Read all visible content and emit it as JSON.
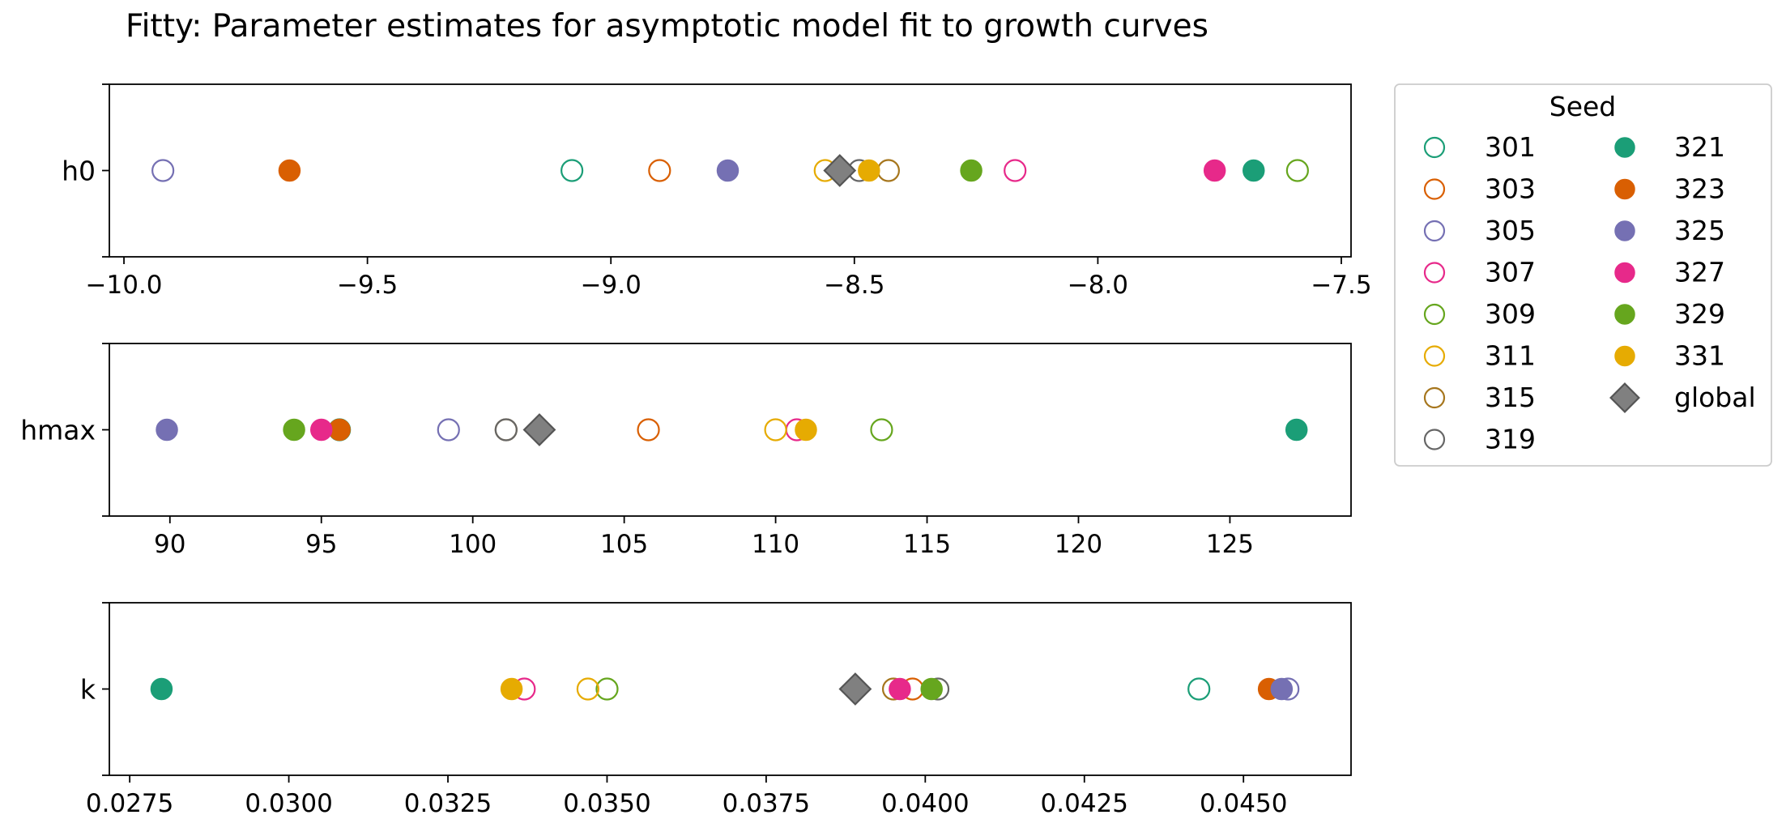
{
  "chart_data": {
    "type": "scatter",
    "title": "Fitty: Parameter estimates for asymptotic model fit to growth curves",
    "legend": {
      "title": "Seed",
      "placement": "right-outside-top"
    },
    "colors": {
      "301": "#1b9e77",
      "303": "#d95f02",
      "305": "#7570b3",
      "307": "#e7298a",
      "309": "#66a61e",
      "311": "#e6ab02",
      "315": "#a6761d",
      "319": "#666666",
      "321": "#1b9e77",
      "323": "#d95f02",
      "325": "#7570b3",
      "327": "#e7298a",
      "329": "#66a61e",
      "331": "#e6ab02",
      "global": "#808080"
    },
    "series": [
      {
        "name": "301",
        "marker": "hollow-circle"
      },
      {
        "name": "303",
        "marker": "hollow-circle"
      },
      {
        "name": "305",
        "marker": "hollow-circle"
      },
      {
        "name": "307",
        "marker": "hollow-circle"
      },
      {
        "name": "309",
        "marker": "hollow-circle"
      },
      {
        "name": "311",
        "marker": "hollow-circle"
      },
      {
        "name": "315",
        "marker": "hollow-circle"
      },
      {
        "name": "319",
        "marker": "hollow-circle"
      },
      {
        "name": "321",
        "marker": "filled-circle"
      },
      {
        "name": "323",
        "marker": "filled-circle"
      },
      {
        "name": "325",
        "marker": "filled-circle"
      },
      {
        "name": "327",
        "marker": "filled-circle"
      },
      {
        "name": "329",
        "marker": "filled-circle"
      },
      {
        "name": "331",
        "marker": "filled-circle"
      },
      {
        "name": "global",
        "marker": "diamond"
      }
    ],
    "panels": [
      {
        "ylabel": "h0",
        "xlim": [
          -10.03,
          -7.48
        ],
        "xticks": [
          -10.0,
          -9.5,
          -9.0,
          -8.5,
          -8.0,
          -7.5
        ],
        "xtick_labels": [
          "−10.0",
          "−9.5",
          "−9.0",
          "−8.5",
          "−8.0",
          "−7.5"
        ],
        "values": {
          "301": -9.08,
          "303": -8.9,
          "305": -9.92,
          "307": -8.17,
          "309": -7.59,
          "311": -8.56,
          "315": -8.43,
          "319": -8.49,
          "321": -7.68,
          "323": -9.66,
          "325": -8.76,
          "327": -7.76,
          "329": -8.26,
          "331": -8.47,
          "global": -8.53
        }
      },
      {
        "ylabel": "hmax",
        "xlim": [
          88.0,
          129.0
        ],
        "xticks": [
          90,
          95,
          100,
          105,
          110,
          115,
          120,
          125
        ],
        "xtick_labels": [
          "90",
          "95",
          "100",
          "105",
          "110",
          "115",
          "120",
          "125"
        ],
        "values": {
          "301": 95.6,
          "303": 105.8,
          "305": 99.2,
          "307": 110.7,
          "309": 113.5,
          "311": 110.0,
          "315": 101.1,
          "319": 101.1,
          "321": 127.2,
          "323": 95.6,
          "325": 89.9,
          "327": 95.0,
          "329": 94.1,
          "331": 111.0,
          "global": 102.2
        }
      },
      {
        "ylabel": "k",
        "xlim": [
          0.02718,
          0.04669
        ],
        "xticks": [
          0.0275,
          0.03,
          0.0325,
          0.035,
          0.0375,
          0.04,
          0.0425,
          0.045
        ],
        "xtick_labels": [
          "0.0275",
          "0.0300",
          "0.0325",
          "0.0350",
          "0.0375",
          "0.0400",
          "0.0425",
          "0.0450"
        ],
        "values": {
          "301": 0.0443,
          "303": 0.0398,
          "305": 0.0457,
          "307": 0.0337,
          "309": 0.035,
          "311": 0.0347,
          "315": 0.0395,
          "319": 0.0402,
          "321": 0.028,
          "323": 0.0454,
          "325": 0.0456,
          "327": 0.0396,
          "329": 0.0401,
          "331": 0.0335,
          "global": 0.0389
        }
      }
    ]
  }
}
